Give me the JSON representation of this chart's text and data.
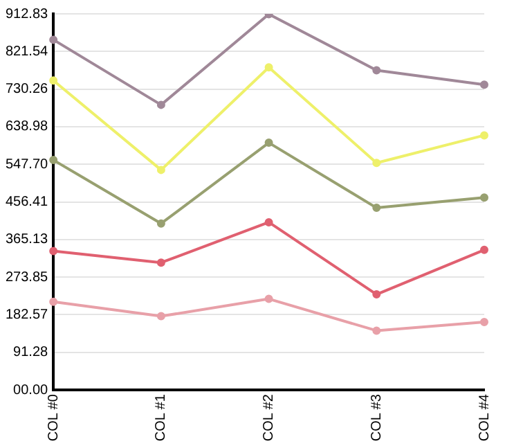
{
  "chart_data": {
    "type": "line",
    "categories": [
      "COL #0",
      "COL #1",
      "COL #2",
      "COL #3",
      "COL #4"
    ],
    "series": [
      {
        "color": "#a08898",
        "values": [
          850,
          692,
          912,
          776,
          741
        ]
      },
      {
        "color": "#eef06a",
        "values": [
          751,
          534,
          783,
          551,
          618
        ]
      },
      {
        "color": "#98a070",
        "values": [
          558,
          404,
          600,
          442,
          467
        ]
      },
      {
        "color": "#e06070",
        "values": [
          337,
          309,
          407,
          232,
          340
        ]
      },
      {
        "color": "#e8a0a8",
        "values": [
          214,
          179,
          221,
          144,
          165
        ]
      }
    ],
    "ylim": [
      0,
      912.83
    ],
    "yticks": [
      {
        "value": 0,
        "label": "00.00"
      },
      91.28,
      182.57,
      273.85,
      365.13,
      456.41,
      {
        "value": 547.7,
        "label": "547.70"
      },
      638.98,
      730.26,
      821.54,
      912.83
    ],
    "grid": "y",
    "legend": false,
    "marker": "circle",
    "line_style": "solid"
  }
}
